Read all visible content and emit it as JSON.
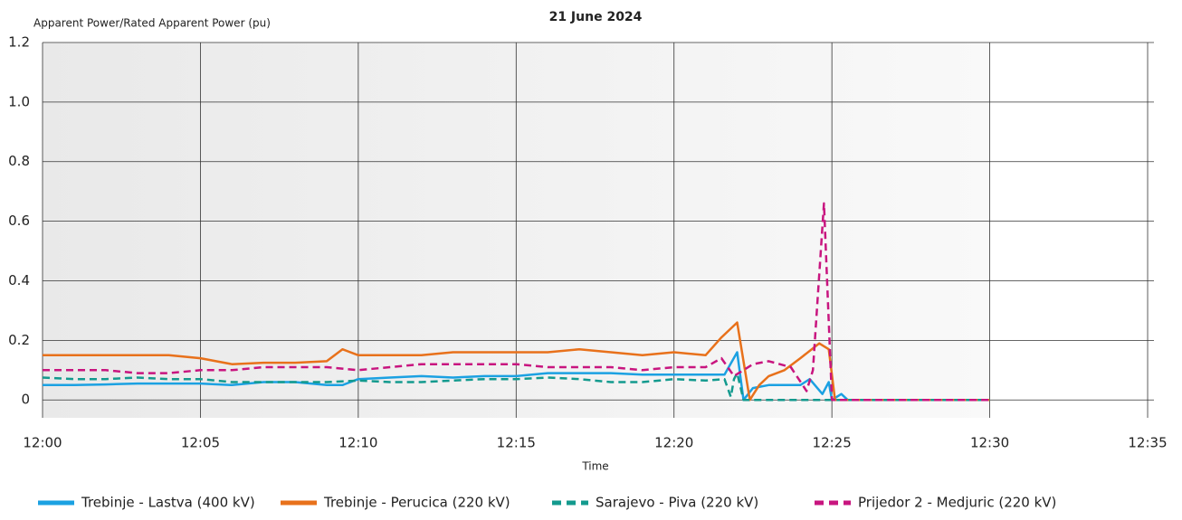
{
  "chart_data": {
    "type": "line",
    "title": "21 June 2024",
    "y_label": "Apparent Power/Rated Apparent Power (pu)",
    "x_label": "Time",
    "xlim": [
      0,
      35.2
    ],
    "xticks": [
      {
        "value": 0,
        "label": "12:00"
      },
      {
        "value": 5,
        "label": "12:05"
      },
      {
        "value": 10,
        "label": "12:10"
      },
      {
        "value": 15,
        "label": "12:15"
      },
      {
        "value": 20,
        "label": "12:20"
      },
      {
        "value": 25,
        "label": "12:25"
      },
      {
        "value": 30,
        "label": "12:30"
      },
      {
        "value": 35,
        "label": "12:35"
      }
    ],
    "ylim": [
      -0.06,
      1.2
    ],
    "yticks": [
      0,
      0.2,
      0.4,
      0.6,
      0.8,
      {
        "value": 1,
        "label": "1.0"
      },
      {
        "value": 1.2,
        "label": "1.2"
      }
    ],
    "grid": true,
    "legend": "bottom",
    "series": [
      {
        "name": "Trebinje - Lastva (400 kV)",
        "color": "#1ba1e2",
        "dash": false,
        "x": [
          0,
          1,
          2,
          3,
          4,
          5,
          6,
          7,
          8,
          9,
          9.5,
          10,
          11,
          12,
          13,
          14,
          15,
          16,
          17,
          18,
          19,
          20,
          21,
          21.6,
          22,
          22.2,
          22.5,
          23,
          24,
          24.3,
          24.7,
          24.9,
          25,
          25.3,
          25.5,
          27,
          30
        ],
        "values": [
          0.05,
          0.05,
          0.052,
          0.055,
          0.055,
          0.055,
          0.05,
          0.06,
          0.06,
          0.05,
          0.05,
          0.07,
          0.075,
          0.08,
          0.075,
          0.08,
          0.08,
          0.09,
          0.09,
          0.09,
          0.085,
          0.085,
          0.085,
          0.085,
          0.16,
          0.0,
          0.04,
          0.05,
          0.05,
          0.07,
          0.02,
          0.06,
          0.0,
          0.02,
          0.0,
          0.0,
          0.0
        ]
      },
      {
        "name": "Trebinje - Perucica (220 kV)",
        "color": "#e8711b",
        "dash": false,
        "x": [
          0,
          1,
          2,
          3,
          4,
          5,
          6,
          7,
          8,
          9,
          9.5,
          10,
          11,
          12,
          13,
          14,
          15,
          16,
          17,
          18,
          19,
          20,
          21,
          21.5,
          22,
          22.4,
          22.7,
          23,
          23.5,
          24,
          24.6,
          24.9,
          25.1,
          27,
          30
        ],
        "values": [
          0.15,
          0.15,
          0.15,
          0.15,
          0.15,
          0.14,
          0.12,
          0.125,
          0.125,
          0.13,
          0.17,
          0.15,
          0.15,
          0.15,
          0.16,
          0.16,
          0.16,
          0.16,
          0.17,
          0.16,
          0.15,
          0.16,
          0.15,
          0.21,
          0.26,
          0.0,
          0.05,
          0.08,
          0.1,
          0.14,
          0.19,
          0.17,
          0.0,
          0.0,
          0.0
        ]
      },
      {
        "name": "Sarajevo - Piva (220 kV)",
        "color": "#139a8e",
        "dash": true,
        "x": [
          0,
          1,
          2,
          3,
          4,
          5,
          6,
          7,
          8,
          9,
          10,
          11,
          12,
          13,
          14,
          15,
          16,
          17,
          18,
          19,
          20,
          21,
          21.6,
          21.8,
          21.9,
          22,
          22.2,
          25,
          30
        ],
        "values": [
          0.075,
          0.07,
          0.07,
          0.075,
          0.07,
          0.07,
          0.06,
          0.06,
          0.06,
          0.06,
          0.065,
          0.06,
          0.06,
          0.065,
          0.07,
          0.07,
          0.075,
          0.07,
          0.06,
          0.06,
          0.07,
          0.065,
          0.07,
          0.01,
          0.07,
          0.09,
          0.0,
          0.0,
          0.0
        ]
      },
      {
        "name": "Prijedor 2 - Medjuric (220 kV)",
        "color": "#c8157f",
        "dash": true,
        "x": [
          0,
          1,
          2,
          3,
          4,
          5,
          6,
          7,
          8,
          9,
          10,
          11,
          12,
          13,
          14,
          15,
          16,
          17,
          18,
          19,
          20,
          21,
          21.5,
          21.9,
          22.5,
          23,
          23.7,
          24.2,
          24.4,
          24.75,
          25,
          27,
          30
        ],
        "values": [
          0.1,
          0.1,
          0.1,
          0.09,
          0.09,
          0.1,
          0.1,
          0.11,
          0.11,
          0.11,
          0.1,
          0.11,
          0.12,
          0.12,
          0.12,
          0.12,
          0.11,
          0.11,
          0.11,
          0.1,
          0.11,
          0.11,
          0.14,
          0.08,
          0.12,
          0.13,
          0.11,
          0.03,
          0.1,
          0.66,
          0.0,
          0.0,
          0.0
        ]
      }
    ]
  }
}
